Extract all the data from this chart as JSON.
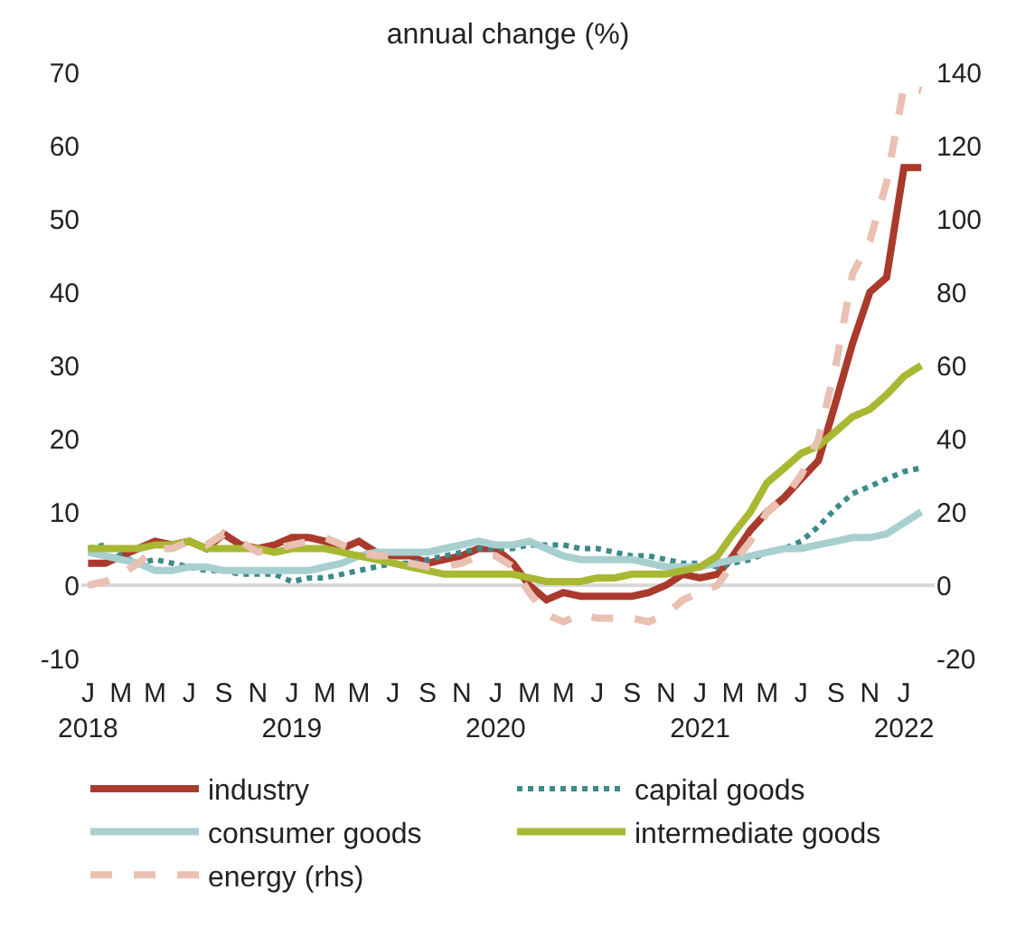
{
  "chart_data": {
    "type": "line",
    "title": "annual change (%)",
    "x": [
      "2018-01",
      "2018-02",
      "2018-03",
      "2018-04",
      "2018-05",
      "2018-06",
      "2018-07",
      "2018-08",
      "2018-09",
      "2018-10",
      "2018-11",
      "2018-12",
      "2019-01",
      "2019-02",
      "2019-03",
      "2019-04",
      "2019-05",
      "2019-06",
      "2019-07",
      "2019-08",
      "2019-09",
      "2019-10",
      "2019-11",
      "2019-12",
      "2020-01",
      "2020-02",
      "2020-03",
      "2020-04",
      "2020-05",
      "2020-06",
      "2020-07",
      "2020-08",
      "2020-09",
      "2020-10",
      "2020-11",
      "2020-12",
      "2021-01",
      "2021-02",
      "2021-03",
      "2021-04",
      "2021-05",
      "2021-06",
      "2021-07",
      "2021-08",
      "2021-09",
      "2021-10",
      "2021-11",
      "2021-12",
      "2022-01",
      "2022-02"
    ],
    "series": [
      {
        "name": "industry",
        "color": "#a93a2c",
        "line_style": "solid",
        "values": [
          3,
          3,
          4,
          5,
          6,
          5.5,
          6,
          5,
          7,
          5.5,
          5,
          5.5,
          6.5,
          6.5,
          6,
          5,
          6,
          4.5,
          4,
          4,
          3,
          3.5,
          4,
          5,
          5,
          3,
          0,
          -2,
          -1,
          -1.5,
          -1.5,
          -1.5,
          -1.5,
          -1,
          0,
          1.5,
          1,
          1.5,
          4,
          7.5,
          10,
          12,
          14.5,
          17,
          25,
          33,
          40,
          42,
          57,
          57
        ]
      },
      {
        "name": "capital goods",
        "color": "#3d8a8a",
        "line_style": "dotted",
        "values": [
          5,
          5.5,
          4,
          3,
          3.5,
          3,
          2.5,
          2,
          2,
          1.5,
          1.5,
          1.5,
          0.5,
          1,
          1,
          1.5,
          2,
          2.5,
          3,
          3,
          3.5,
          4,
          4.5,
          5,
          5,
          5,
          5.5,
          5.5,
          5.5,
          5,
          5,
          4.5,
          4,
          4,
          3.5,
          3,
          3,
          2.5,
          3,
          3.5,
          4.5,
          5,
          6,
          8,
          10.5,
          12.5,
          13.5,
          14.5,
          15.5,
          16
        ]
      },
      {
        "name": "consumer goods",
        "color": "#a8cfcf",
        "line_style": "solid",
        "values": [
          4.5,
          4,
          3.5,
          3,
          2,
          2,
          2.5,
          2.5,
          2,
          2,
          2,
          2,
          2,
          2,
          2.5,
          3,
          4,
          4.5,
          4.5,
          4.5,
          4.5,
          5,
          5.5,
          6,
          5.5,
          5.5,
          6,
          5,
          4,
          3.5,
          3.5,
          3.5,
          3.5,
          3,
          2.5,
          2.5,
          2.5,
          3,
          3.5,
          4,
          4.5,
          5,
          5,
          5.5,
          6,
          6.5,
          6.5,
          7,
          8.5,
          10
        ]
      },
      {
        "name": "intermediate goods",
        "color": "#a8b832",
        "line_style": "solid",
        "values": [
          5,
          5,
          5,
          5,
          5.5,
          5.5,
          6,
          5,
          5,
          5,
          5,
          4.5,
          5,
          5,
          5,
          4.5,
          4,
          3.5,
          3,
          2.5,
          2,
          1.5,
          1.5,
          1.5,
          1.5,
          1.5,
          1,
          0.5,
          0.5,
          0.5,
          1,
          1,
          1.5,
          1.5,
          1.5,
          2,
          2.5,
          4,
          7,
          10,
          14,
          16,
          18,
          19,
          21,
          23,
          24,
          26,
          28.5,
          30
        ]
      },
      {
        "name": "energy (rhs)",
        "color": "#eac0b2",
        "line_style": "dashed",
        "axis": "y2",
        "values": [
          0,
          1,
          3,
          6,
          10,
          10,
          12,
          11,
          14,
          12,
          9,
          10,
          11,
          12,
          13,
          11,
          9,
          8,
          8,
          6,
          5,
          5,
          6,
          8,
          8,
          5,
          -2,
          -8,
          -10,
          -8,
          -9,
          -9,
          -9,
          -10,
          -8,
          -4,
          -2,
          0,
          6,
          12,
          20,
          24,
          30,
          40,
          60,
          85,
          94,
          110,
          136,
          135
        ]
      }
    ],
    "xlim": [
      "2017-12-20",
      "2022-02-25"
    ],
    "xticks": [
      {
        "value": "2018-01",
        "label": "J\n2018"
      },
      {
        "value": "2018-03",
        "label": "M"
      },
      {
        "value": "2018-05",
        "label": "M"
      },
      {
        "value": "2018-07",
        "label": "J"
      },
      {
        "value": "2018-09",
        "label": "S"
      },
      {
        "value": "2018-11",
        "label": "N"
      },
      {
        "value": "2019-01",
        "label": "J\n2019"
      },
      {
        "value": "2019-03",
        "label": "M"
      },
      {
        "value": "2019-05",
        "label": "M"
      },
      {
        "value": "2019-07",
        "label": "J"
      },
      {
        "value": "2019-09",
        "label": "S"
      },
      {
        "value": "2019-11",
        "label": "N"
      },
      {
        "value": "2020-01",
        "label": "J\n2020"
      },
      {
        "value": "2020-03",
        "label": "M"
      },
      {
        "value": "2020-05",
        "label": "M"
      },
      {
        "value": "2020-07",
        "label": "J"
      },
      {
        "value": "2020-09",
        "label": "S"
      },
      {
        "value": "2020-11",
        "label": "N"
      },
      {
        "value": "2021-01",
        "label": "J\n2021"
      },
      {
        "value": "2021-03",
        "label": "M"
      },
      {
        "value": "2021-05",
        "label": "M"
      },
      {
        "value": "2021-07",
        "label": "J"
      },
      {
        "value": "2021-09",
        "label": "S"
      },
      {
        "value": "2021-11",
        "label": "N"
      },
      {
        "value": "2022-01",
        "label": "J\n2022"
      }
    ],
    "ylim": [
      -10,
      70
    ],
    "yticks": [
      -10,
      0,
      10,
      20,
      30,
      40,
      50,
      60,
      70
    ],
    "y2lim": [
      -20,
      140
    ],
    "y2ticks": [
      -20,
      0,
      20,
      40,
      60,
      80,
      100,
      120,
      140
    ],
    "ref_lines": [
      {
        "axis": "y",
        "value": 0,
        "color": "#d8d8d8"
      }
    ],
    "legend": "bottom",
    "marker": "none"
  }
}
